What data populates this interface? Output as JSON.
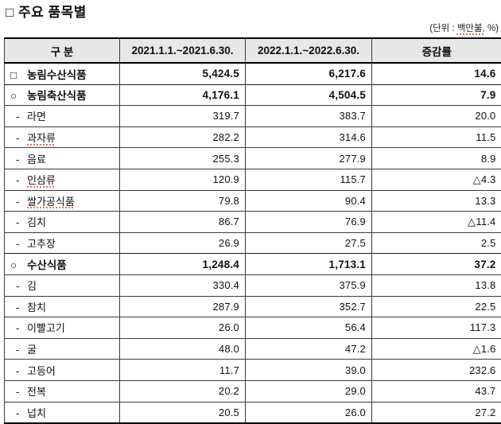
{
  "page": {
    "title": "□ 주요 품목별",
    "unit_note": {
      "prefix": "(단위 : ",
      "flagged": "백만불,",
      "suffix": " %)"
    }
  },
  "table": {
    "columns": [
      "구 분",
      "2021.1.1.~2021.6.30.",
      "2022.1.1.~2022.6.30.",
      "증감률"
    ],
    "rows": [
      {
        "prefix": "□",
        "label": "농림수산식품",
        "v2021": "5,424.5",
        "v2022": "6,217.6",
        "rate": "14.6",
        "bold": true,
        "misspell": false
      },
      {
        "prefix": "○",
        "label": "농림축산식품",
        "v2021": "4,176.1",
        "v2022": "4,504.5",
        "rate": "7.9",
        "bold": true,
        "misspell": false
      },
      {
        "prefix": "-",
        "label": "라면",
        "v2021": "319.7",
        "v2022": "383.7",
        "rate": "20.0",
        "bold": false,
        "misspell": false
      },
      {
        "prefix": "-",
        "label": "과자류",
        "v2021": "282.2",
        "v2022": "314.6",
        "rate": "11.5",
        "bold": false,
        "misspell": true
      },
      {
        "prefix": "-",
        "label": "음료",
        "v2021": "255.3",
        "v2022": "277.9",
        "rate": "8.9",
        "bold": false,
        "misspell": false
      },
      {
        "prefix": "-",
        "label": "인삼류",
        "v2021": "120.9",
        "v2022": "115.7",
        "rate": "△4.3",
        "bold": false,
        "misspell": true
      },
      {
        "prefix": "-",
        "label": "쌀가공식품",
        "v2021": "79.8",
        "v2022": "90.4",
        "rate": "13.3",
        "bold": false,
        "misspell": true
      },
      {
        "prefix": "-",
        "label": "김치",
        "v2021": "86.7",
        "v2022": "76.9",
        "rate": "△11.4",
        "bold": false,
        "misspell": false
      },
      {
        "prefix": "-",
        "label": "고추장",
        "v2021": "26.9",
        "v2022": "27.5",
        "rate": "2.5",
        "bold": false,
        "misspell": false
      },
      {
        "prefix": "○",
        "label": "수산식품",
        "v2021": "1,248.4",
        "v2022": "1,713.1",
        "rate": "37.2",
        "bold": true,
        "misspell": false
      },
      {
        "prefix": "-",
        "label": "김",
        "v2021": "330.4",
        "v2022": "375.9",
        "rate": "13.8",
        "bold": false,
        "misspell": false
      },
      {
        "prefix": "-",
        "label": "참치",
        "v2021": "287.9",
        "v2022": "352.7",
        "rate": "22.5",
        "bold": false,
        "misspell": false
      },
      {
        "prefix": "-",
        "label": "이빨고기",
        "v2021": "26.0",
        "v2022": "56.4",
        "rate": "117.3",
        "bold": false,
        "misspell": false
      },
      {
        "prefix": "-",
        "label": "굴",
        "v2021": "48.0",
        "v2022": "47.2",
        "rate": "△1.6",
        "bold": false,
        "misspell": false
      },
      {
        "prefix": "-",
        "label": "고등어",
        "v2021": "11.7",
        "v2022": "39.0",
        "rate": "232.6",
        "bold": false,
        "misspell": false
      },
      {
        "prefix": "-",
        "label": "전복",
        "v2021": "20.2",
        "v2022": "29.0",
        "rate": "43.7",
        "bold": false,
        "misspell": false
      },
      {
        "prefix": "-",
        "label": "넙치",
        "v2021": "20.5",
        "v2022": "26.0",
        "rate": "27.2",
        "bold": false,
        "misspell": false
      }
    ]
  }
}
